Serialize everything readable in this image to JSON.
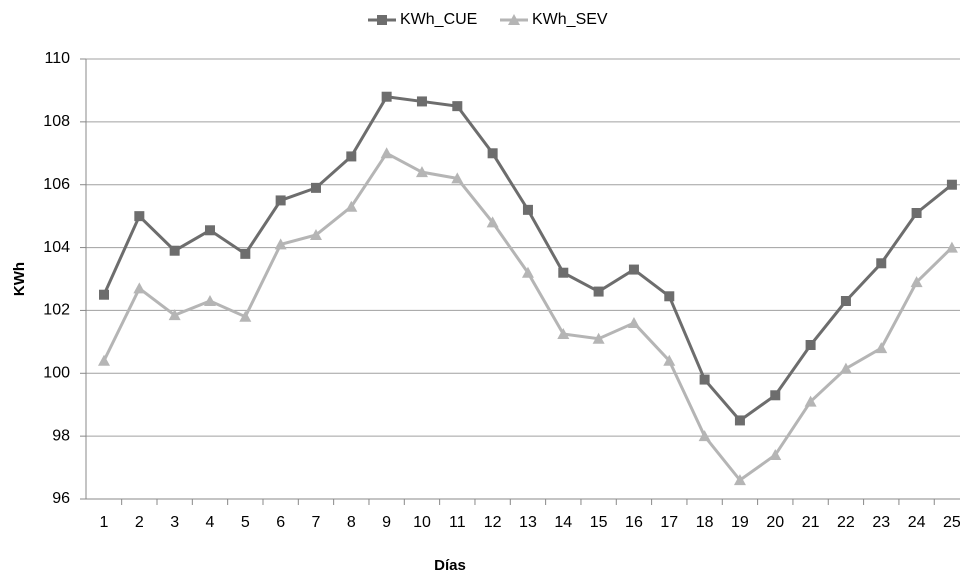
{
  "chart_data": {
    "type": "line",
    "xlabel": "Días",
    "ylabel": "KWh",
    "categories": [
      "1",
      "2",
      "3",
      "4",
      "5",
      "6",
      "7",
      "8",
      "9",
      "10",
      "11",
      "12",
      "13",
      "14",
      "15",
      "16",
      "17",
      "18",
      "19",
      "20",
      "21",
      "22",
      "23",
      "24",
      "25"
    ],
    "series": [
      {
        "name": "KWh_CUE",
        "color": "#6d6d6d",
        "marker": "square",
        "values": [
          102.5,
          105.0,
          103.9,
          104.55,
          103.8,
          105.5,
          105.9,
          106.9,
          108.8,
          108.65,
          108.5,
          107.0,
          105.2,
          103.2,
          102.6,
          103.3,
          102.45,
          99.8,
          98.5,
          99.3,
          100.9,
          102.3,
          103.5,
          105.1,
          106.0
        ]
      },
      {
        "name": "KWh_SEV",
        "color": "#b5b5b5",
        "marker": "triangle",
        "values": [
          100.4,
          102.7,
          101.85,
          102.3,
          101.8,
          104.1,
          104.4,
          105.3,
          107.0,
          106.4,
          106.2,
          104.8,
          103.2,
          101.25,
          101.1,
          101.6,
          100.4,
          98.0,
          96.6,
          97.4,
          99.1,
          100.15,
          100.8,
          102.9,
          104.0
        ]
      }
    ],
    "ylim": [
      96,
      110
    ],
    "yticks": [
      96,
      98,
      100,
      102,
      104,
      106,
      108,
      110
    ],
    "grid": true,
    "legend": "top"
  }
}
